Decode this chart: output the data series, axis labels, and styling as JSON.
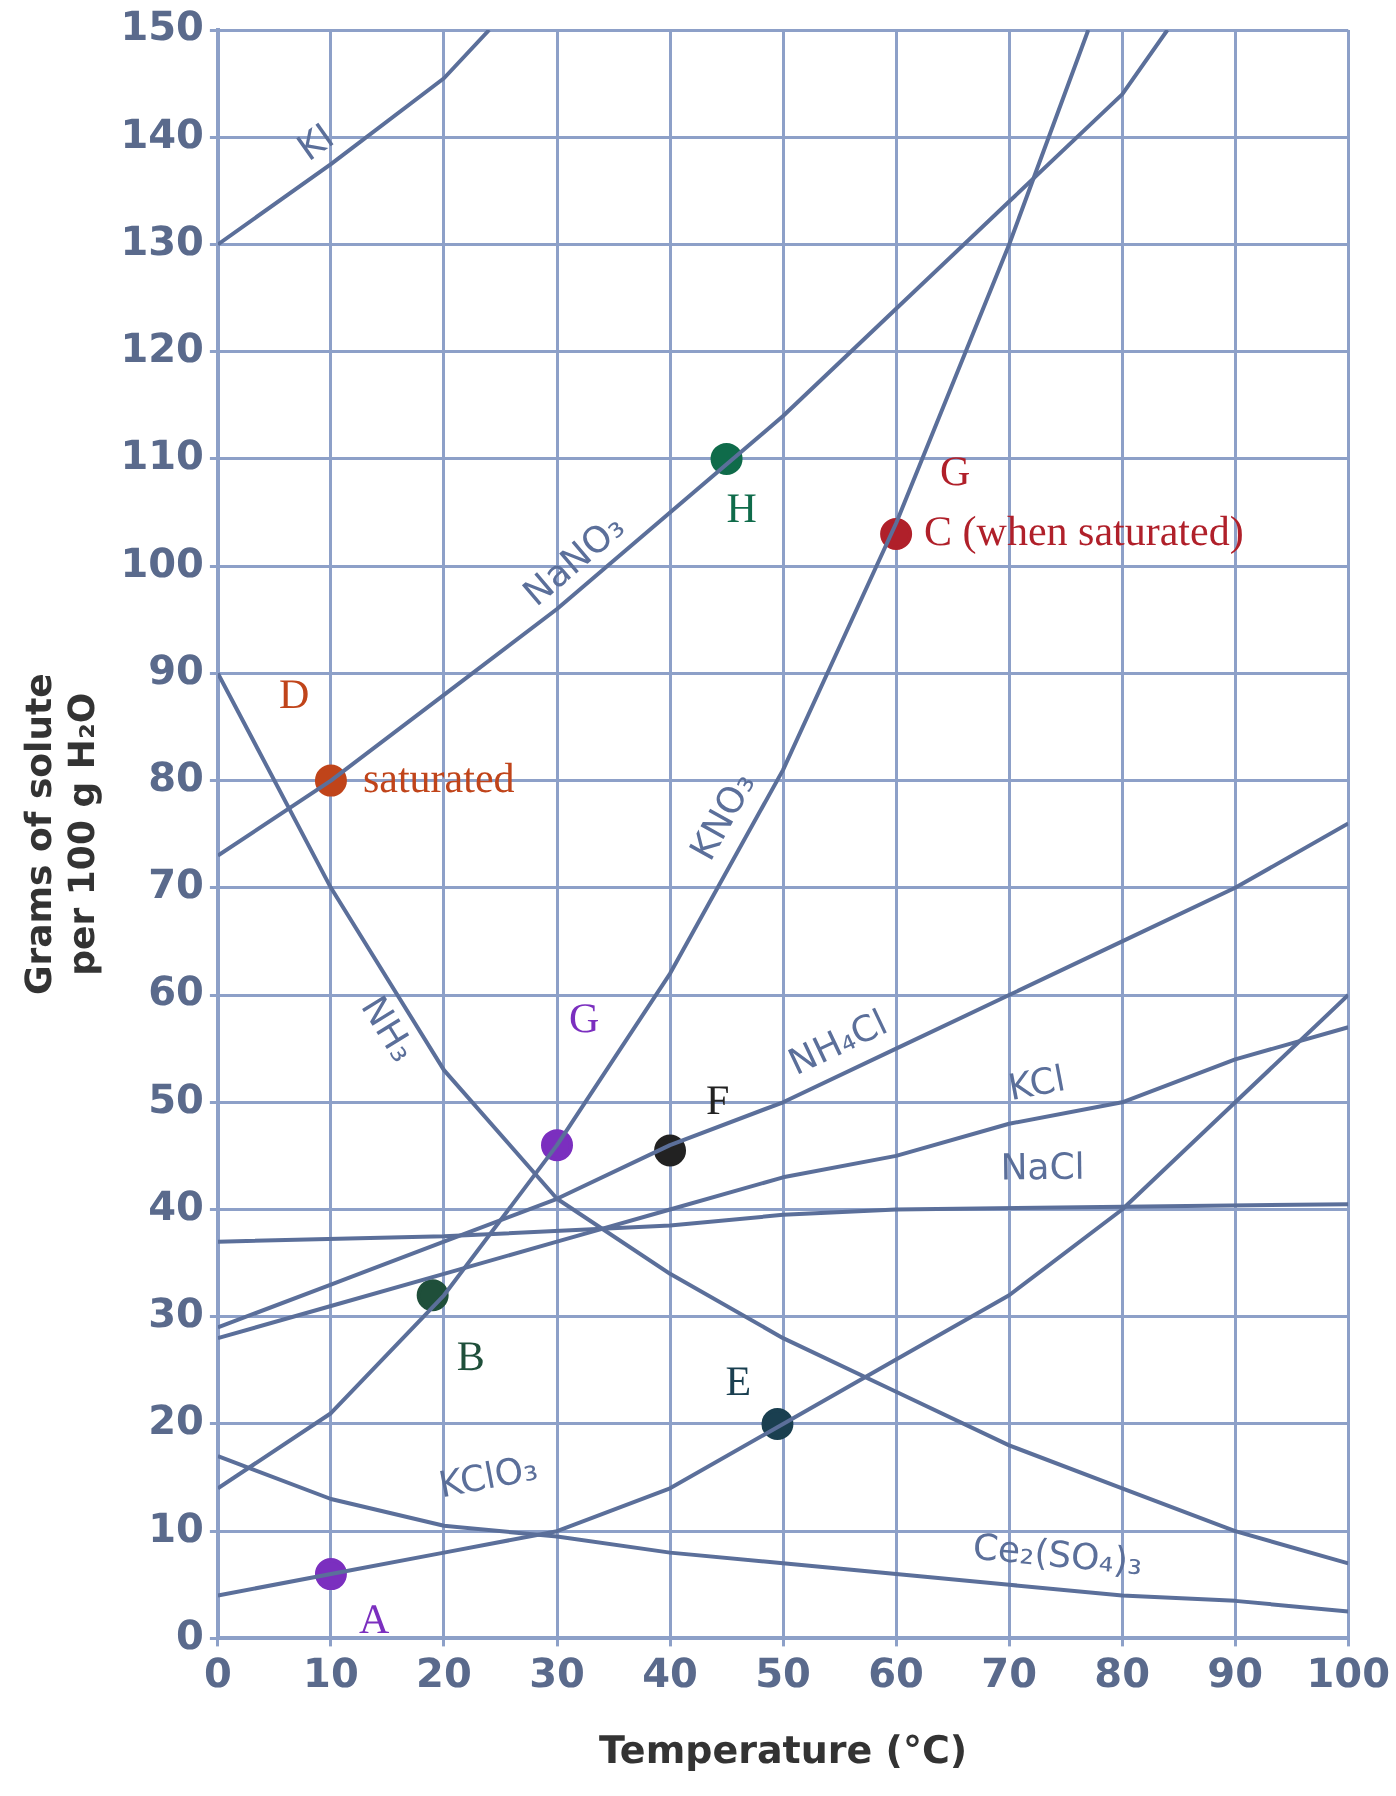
{
  "chart_data": {
    "type": "line",
    "xlabel": "Temperature (°C)",
    "ylabel": "Grams of solute per 100 g H₂O",
    "xlim": [
      0,
      100
    ],
    "xticks": [
      0,
      10,
      20,
      30,
      40,
      50,
      60,
      70,
      80,
      90,
      100
    ],
    "ylim": [
      0,
      150
    ],
    "yticks": [
      0,
      10,
      20,
      30,
      40,
      50,
      60,
      70,
      80,
      90,
      100,
      110,
      120,
      130,
      140,
      150
    ],
    "grid": true,
    "legend": false,
    "marker": "none",
    "line_style": "solid",
    "series": [
      {
        "name": "KI",
        "color": "#5b6f9a",
        "x": [
          0,
          10,
          20,
          24
        ],
        "values": [
          130,
          137.5,
          145.5,
          150
        ]
      },
      {
        "name": "NaNO₃",
        "color": "#5b6f9a",
        "x": [
          0,
          10,
          20,
          30,
          40,
          50,
          60,
          70,
          80,
          84
        ],
        "values": [
          73,
          80,
          88,
          96,
          105,
          114,
          124,
          134,
          144,
          150
        ]
      },
      {
        "name": "KNO₃",
        "color": "#5b6f9a",
        "x": [
          0,
          10,
          20,
          30,
          40,
          50,
          60,
          70,
          77
        ],
        "values": [
          14,
          21,
          32,
          46,
          62,
          81,
          104,
          130,
          150
        ]
      },
      {
        "name": "NH₃",
        "color": "#5b6f9a",
        "x": [
          0,
          10,
          20,
          30,
          40,
          50,
          60,
          70,
          80,
          90,
          100
        ],
        "values": [
          90,
          70,
          53,
          41,
          34,
          28,
          23,
          18,
          14,
          10,
          7
        ]
      },
      {
        "name": "NH₄Cl",
        "color": "#5b6f9a",
        "x": [
          0,
          10,
          20,
          30,
          40,
          50,
          60,
          70,
          80,
          90,
          100
        ],
        "values": [
          29,
          33,
          37,
          41,
          46,
          50,
          55,
          60,
          65,
          70,
          76
        ]
      },
      {
        "name": "KCl",
        "color": "#5b6f9a",
        "x": [
          0,
          10,
          20,
          30,
          40,
          50,
          60,
          70,
          80,
          90,
          100
        ],
        "values": [
          28,
          31,
          34,
          37,
          40,
          43,
          45,
          48,
          50,
          54,
          57
        ]
      },
      {
        "name": "NaCl",
        "color": "#5b6f9a",
        "x": [
          0,
          20,
          40,
          50,
          60,
          100
        ],
        "values": [
          37,
          37.5,
          38.5,
          39.5,
          40,
          40.5
        ]
      },
      {
        "name": "KClO₃",
        "color": "#5b6f9a",
        "x": [
          0,
          10,
          20,
          30,
          40,
          50,
          60,
          70,
          80,
          90,
          100
        ],
        "values": [
          4,
          6,
          8,
          10,
          14,
          20,
          26,
          32,
          40,
          50,
          60
        ]
      },
      {
        "name": "Ce₂(SO₄)₃",
        "color": "#5b6f9a",
        "x": [
          0,
          10,
          20,
          30,
          40,
          50,
          60,
          70,
          80,
          90,
          100
        ],
        "values": [
          17,
          13,
          10.5,
          9.5,
          8,
          7,
          6,
          5,
          4,
          3.5,
          2.5
        ]
      },
      {
        "type": "scatter",
        "marker": "circle",
        "x": [
          10,
          19,
          30,
          40,
          49.5,
          10,
          45,
          60
        ],
        "values": [
          6,
          32,
          46,
          45.5,
          20,
          80,
          110,
          103
        ],
        "colors": [
          "#7b2fbf",
          "#1f4f3a",
          "#7b2fbf",
          "#222222",
          "#1a3f50",
          "#c0441a",
          "#0f6b4a",
          "#b0202a"
        ]
      }
    ],
    "annotations": [
      {
        "text": "A",
        "x": 10,
        "y": 6
      },
      {
        "text": "B",
        "x": 19,
        "y": 32
      },
      {
        "text": "G",
        "x": 30,
        "y": 46
      },
      {
        "text": "F",
        "x": 40,
        "y": 45.5
      },
      {
        "text": "E",
        "x": 49.5,
        "y": 20
      },
      {
        "text": "D",
        "x": 10,
        "y": 80
      },
      {
        "text": "saturated",
        "x": 10,
        "y": 80
      },
      {
        "text": "H",
        "x": 45,
        "y": 110
      },
      {
        "text": "C (when saturated)",
        "x": 60,
        "y": 103
      },
      {
        "text": "G",
        "x": 60,
        "y": 103
      }
    ]
  }
}
